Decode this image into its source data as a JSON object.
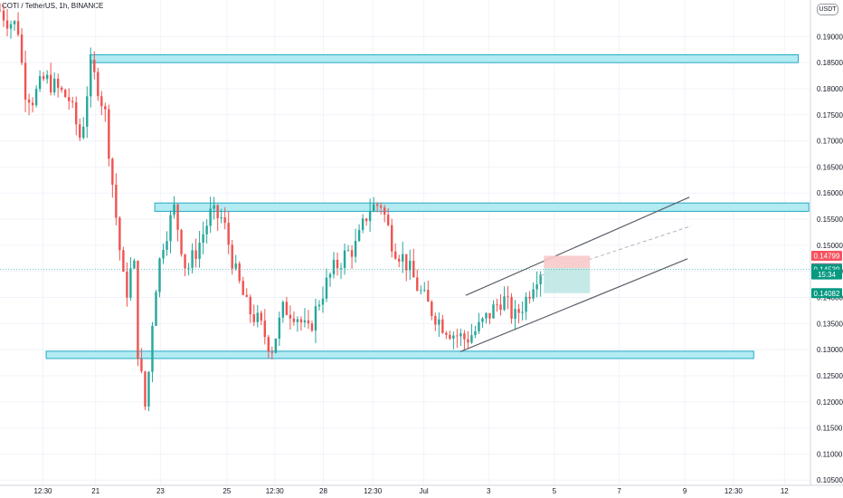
{
  "chart_data": {
    "type": "candlestick",
    "title": "COTI / TetherUS, 1h, BINANCE",
    "unit": "USDT",
    "ylim": [
      0.104,
      0.197
    ],
    "y_ticks": [
      "0.19000",
      "0.18500",
      "0.18000",
      "0.17500",
      "0.17000",
      "0.16500",
      "0.16000",
      "0.15500",
      "0.15000",
      "0.14500",
      "0.14000",
      "0.13500",
      "0.13000",
      "0.12500",
      "0.12000",
      "0.11500",
      "0.11000",
      "0.10500"
    ],
    "x_ticks": [
      "12:30",
      "21",
      "23",
      "25",
      "12:30",
      "28",
      "12:30",
      "Jul",
      "3",
      "5",
      "7",
      "9",
      "12:30",
      "12"
    ],
    "price_labels": [
      {
        "text": "0.14799",
        "value": 0.14799,
        "color": "#f7525f"
      },
      {
        "text": "0.14560",
        "value": 0.1456,
        "color": "#787b86"
      },
      {
        "text": "0.14539",
        "value": 0.14539,
        "color": "#089981"
      },
      {
        "text": "15:34",
        "value": 0.1444,
        "color": "#089981"
      },
      {
        "text": "0.14082",
        "value": 0.14082,
        "color": "#089981"
      }
    ],
    "zones": [
      {
        "name": "resistance-zone-upper",
        "y_from": 0.185,
        "y_to": 0.1865,
        "x_from": 0.111,
        "x_to": 0.985
      },
      {
        "name": "resistance-zone-middle",
        "y_from": 0.1565,
        "y_to": 0.1581,
        "x_from": 0.191,
        "x_to": 0.998
      },
      {
        "name": "support-zone-lower",
        "y_from": 0.1283,
        "y_to": 0.1297,
        "x_from": 0.057,
        "x_to": 0.93
      }
    ],
    "channel": {
      "upper": [
        [
          0.5747,
          0.1404
        ],
        [
          0.8506,
          0.1592
        ]
      ],
      "lower": [
        [
          0.5678,
          0.1296
        ],
        [
          0.8483,
          0.1474
        ]
      ],
      "mid_dashed": [
        [
          0.667,
          0.1442
        ],
        [
          0.8529,
          0.1537
        ]
      ]
    },
    "position": {
      "x_from": 0.671,
      "x_to": 0.728,
      "entry": 0.1456,
      "stop": 0.14799,
      "target": 0.14082
    },
    "colors": {
      "up": "#26a69a",
      "down": "#ef5350",
      "zone_fill": "#b2ebf2",
      "zone_stroke": "#26a9c5",
      "stop_fill": "#f8c9ca",
      "target_fill": "#bfe7e3"
    },
    "waypoints": [
      [
        0.0,
        0.195
      ],
      [
        0.01,
        0.193
      ],
      [
        0.022,
        0.192
      ],
      [
        0.03,
        0.18
      ],
      [
        0.04,
        0.178
      ],
      [
        0.055,
        0.182
      ],
      [
        0.07,
        0.18
      ],
      [
        0.085,
        0.178
      ],
      [
        0.1,
        0.17
      ],
      [
        0.111,
        0.184
      ],
      [
        0.12,
        0.181
      ],
      [
        0.13,
        0.175
      ],
      [
        0.14,
        0.16
      ],
      [
        0.15,
        0.146
      ],
      [
        0.155,
        0.14
      ],
      [
        0.165,
        0.148
      ],
      [
        0.17,
        0.13
      ],
      [
        0.18,
        0.118
      ],
      [
        0.19,
        0.14
      ],
      [
        0.2,
        0.15
      ],
      [
        0.215,
        0.157
      ],
      [
        0.23,
        0.145
      ],
      [
        0.245,
        0.15
      ],
      [
        0.26,
        0.156
      ],
      [
        0.275,
        0.155
      ],
      [
        0.29,
        0.145
      ],
      [
        0.305,
        0.138
      ],
      [
        0.32,
        0.135
      ],
      [
        0.335,
        0.13
      ],
      [
        0.35,
        0.138
      ],
      [
        0.365,
        0.137
      ],
      [
        0.38,
        0.133
      ],
      [
        0.395,
        0.14
      ],
      [
        0.41,
        0.145
      ],
      [
        0.425,
        0.148
      ],
      [
        0.44,
        0.15
      ],
      [
        0.455,
        0.157
      ],
      [
        0.47,
        0.158
      ],
      [
        0.485,
        0.15
      ],
      [
        0.5,
        0.147
      ],
      [
        0.515,
        0.142
      ],
      [
        0.53,
        0.138
      ],
      [
        0.545,
        0.135
      ],
      [
        0.56,
        0.133
      ],
      [
        0.575,
        0.132
      ],
      [
        0.59,
        0.134
      ],
      [
        0.605,
        0.137
      ],
      [
        0.62,
        0.14
      ],
      [
        0.635,
        0.136
      ],
      [
        0.65,
        0.14
      ],
      [
        0.66,
        0.144
      ],
      [
        0.667,
        0.1454
      ]
    ]
  }
}
